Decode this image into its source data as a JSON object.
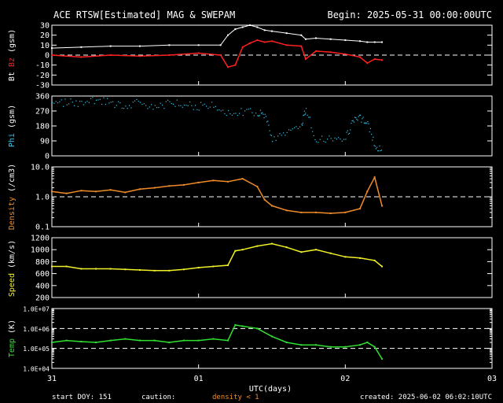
{
  "header": {
    "title": "ACE RTSW[Estimated] MAG & SWEPAM",
    "begin": "Begin: 2025-05-31 00:00:00UTC"
  },
  "footer": {
    "start_doy": "start DOY: 151",
    "caution": "caution:",
    "density_note": "density < 1",
    "created": "created: 2025-06-02 06:02:10UTC"
  },
  "colors": {
    "bt": "#ffffff",
    "bz": "#ff2020",
    "phi": "#30c8f0",
    "density": "#f08c28",
    "speed": "#f0f028",
    "temp": "#30e030",
    "axes": "#ffffff",
    "background": "#000000"
  },
  "chart_data": [
    {
      "type": "line",
      "panel": "mag",
      "ylabel_parts": [
        "Bt",
        "Bz",
        "(gsm)"
      ],
      "ylim": [
        -30,
        30
      ],
      "yticks": [
        -30,
        -20,
        -10,
        0,
        10,
        20,
        30
      ],
      "ytick_labels": [
        "-30",
        "-20",
        "-10",
        "0",
        "10",
        "20",
        "30"
      ],
      "dashed_reference": [
        0
      ],
      "x": [
        0.0,
        0.2,
        0.4,
        0.6,
        0.8,
        1.0,
        1.15,
        1.2,
        1.25,
        1.3,
        1.35,
        1.4,
        1.45,
        1.5,
        1.6,
        1.7,
        1.73,
        1.8,
        1.9,
        2.0,
        2.1,
        2.15,
        2.2,
        2.25
      ],
      "series": [
        {
          "name": "Bt",
          "values": [
            7,
            8,
            9,
            9,
            10,
            10,
            10,
            20,
            26,
            28,
            30,
            28,
            25,
            24,
            22,
            20,
            16,
            17,
            16,
            15,
            14,
            13,
            13,
            13
          ]
        },
        {
          "name": "Bz",
          "values": [
            0,
            -2,
            0,
            -1,
            0,
            2,
            0,
            -12,
            -10,
            8,
            12,
            15,
            13,
            14,
            10,
            9,
            -4,
            4,
            3,
            1,
            -2,
            -8,
            -4,
            -5
          ]
        }
      ]
    },
    {
      "type": "scatter",
      "panel": "phi",
      "ylabel_parts": [
        "Phi",
        "(gsm)"
      ],
      "ylim": [
        0,
        360
      ],
      "yticks": [
        0,
        90,
        180,
        270,
        360
      ],
      "ytick_labels": [
        "0",
        "90",
        "180",
        "270",
        "360"
      ],
      "x": [
        0.0,
        0.1,
        0.2,
        0.3,
        0.4,
        0.5,
        0.6,
        0.7,
        0.8,
        0.9,
        1.0,
        1.1,
        1.2,
        1.3,
        1.4,
        1.45,
        1.5,
        1.6,
        1.7,
        1.73,
        1.8,
        1.9,
        2.0,
        2.05,
        2.1,
        2.15,
        2.2,
        2.25
      ],
      "series": [
        {
          "name": "Phi",
          "values": [
            300,
            330,
            310,
            340,
            320,
            300,
            330,
            290,
            320,
            310,
            300,
            310,
            260,
            270,
            260,
            250,
            110,
            140,
            200,
            280,
            100,
            110,
            110,
            210,
            230,
            200,
            60,
            50
          ]
        }
      ]
    },
    {
      "type": "line",
      "panel": "density",
      "ylabel_parts": [
        "Density",
        "(/cm3)"
      ],
      "yscale": "log",
      "ylim": [
        0.1,
        10.0
      ],
      "yticks": [
        0.1,
        1.0,
        10.0
      ],
      "ytick_labels": [
        "0.1",
        "1.0",
        "10.0"
      ],
      "dashed_reference": [
        1.0
      ],
      "x": [
        0.0,
        0.1,
        0.2,
        0.3,
        0.4,
        0.5,
        0.6,
        0.7,
        0.8,
        0.9,
        1.0,
        1.1,
        1.2,
        1.3,
        1.4,
        1.45,
        1.5,
        1.6,
        1.7,
        1.8,
        1.9,
        2.0,
        2.1,
        2.15,
        2.2,
        2.25
      ],
      "series": [
        {
          "name": "Density",
          "values": [
            1.5,
            1.3,
            1.6,
            1.5,
            1.7,
            1.4,
            1.8,
            2.0,
            2.3,
            2.5,
            3.0,
            3.5,
            3.2,
            4.0,
            2.2,
            0.8,
            0.5,
            0.35,
            0.3,
            0.3,
            0.28,
            0.3,
            0.4,
            1.5,
            4.5,
            0.5
          ]
        }
      ]
    },
    {
      "type": "line",
      "panel": "speed",
      "ylabel_parts": [
        "Speed",
        "(km/s)"
      ],
      "ylim": [
        200,
        1200
      ],
      "yticks": [
        200,
        400,
        600,
        800,
        1000,
        1200
      ],
      "ytick_labels": [
        "200",
        "400",
        "600",
        "800",
        "1000",
        "1200"
      ],
      "x": [
        0.0,
        0.1,
        0.2,
        0.3,
        0.4,
        0.5,
        0.6,
        0.7,
        0.8,
        0.9,
        1.0,
        1.1,
        1.2,
        1.25,
        1.3,
        1.4,
        1.5,
        1.6,
        1.7,
        1.8,
        1.9,
        2.0,
        2.1,
        2.2,
        2.25
      ],
      "series": [
        {
          "name": "Speed",
          "values": [
            720,
            720,
            680,
            680,
            680,
            670,
            660,
            650,
            650,
            670,
            700,
            720,
            740,
            980,
            1000,
            1060,
            1100,
            1040,
            960,
            1000,
            940,
            880,
            860,
            820,
            720
          ]
        }
      ]
    },
    {
      "type": "line",
      "panel": "temp",
      "ylabel_parts": [
        "Temp",
        "(K)"
      ],
      "yscale": "log",
      "ylim": [
        10000,
        10000000
      ],
      "yticks": [
        10000,
        100000,
        1000000,
        10000000
      ],
      "ytick_labels": [
        "1.0E+04",
        "1.0E+05",
        "1.0E+06",
        "1.0E+07"
      ],
      "dashed_reference": [
        100000,
        1000000
      ],
      "x": [
        0.0,
        0.1,
        0.2,
        0.3,
        0.4,
        0.5,
        0.6,
        0.7,
        0.8,
        0.9,
        1.0,
        1.1,
        1.2,
        1.25,
        1.3,
        1.4,
        1.5,
        1.6,
        1.7,
        1.8,
        1.9,
        2.0,
        2.1,
        2.15,
        2.2,
        2.25
      ],
      "series": [
        {
          "name": "Temp",
          "values": [
            200000,
            250000,
            220000,
            200000,
            250000,
            300000,
            250000,
            250000,
            200000,
            250000,
            250000,
            300000,
            250000,
            1500000,
            1300000,
            1000000,
            400000,
            200000,
            150000,
            150000,
            120000,
            120000,
            150000,
            200000,
            120000,
            30000
          ]
        }
      ]
    }
  ],
  "xaxis": {
    "label": "UTC(days)",
    "xlim": [
      0,
      3
    ],
    "ticks": [
      0,
      1,
      2,
      3
    ],
    "tick_labels": [
      "31",
      "01",
      "02",
      "03"
    ]
  }
}
